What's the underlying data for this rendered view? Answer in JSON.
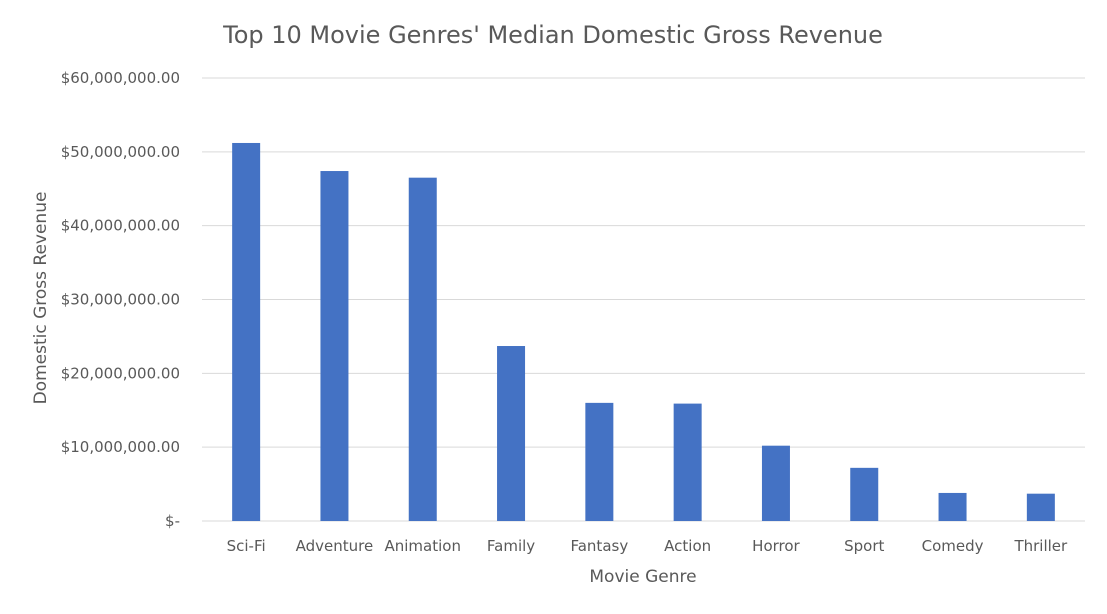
{
  "chart_data": {
    "type": "bar",
    "title": "Top 10 Movie Genres' Median Domestic Gross Revenue",
    "xlabel": "Movie Genre",
    "ylabel": "Domestic Gross Revenue",
    "categories": [
      "Sci-Fi",
      "Adventure",
      "Animation",
      "Family",
      "Fantasy",
      "Action",
      "Horror",
      "Sport",
      "Comedy",
      "Thriller"
    ],
    "values": [
      51200000,
      47400000,
      46500000,
      23700000,
      16000000,
      15900000,
      10200000,
      7200000,
      3800000,
      3700000
    ],
    "ylim": [
      0,
      60000000
    ],
    "y_ticks": [
      0,
      10000000,
      20000000,
      30000000,
      40000000,
      50000000,
      60000000
    ],
    "y_tick_labels": [
      "$-",
      "$10,000,000.00",
      "$20,000,000.00",
      "$30,000,000.00",
      "$40,000,000.00",
      "$50,000,000.00",
      "$60,000,000.00"
    ],
    "grid": true,
    "legend": "none",
    "bar_color": "#4472C4"
  }
}
